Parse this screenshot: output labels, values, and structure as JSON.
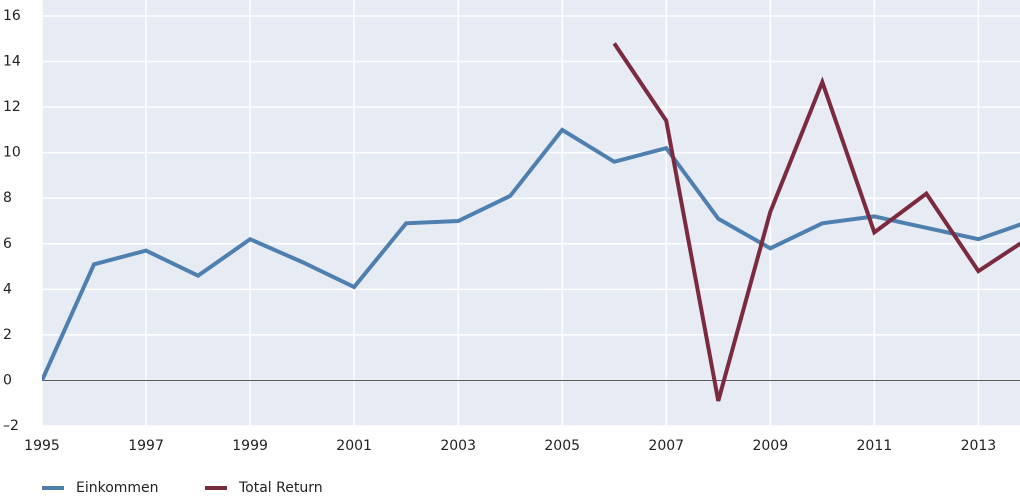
{
  "chart_data": {
    "type": "line",
    "x": [
      1995,
      1996,
      1997,
      1998,
      1999,
      2000,
      2001,
      2002,
      2003,
      2004,
      2005,
      2006,
      2007,
      2008,
      2009,
      2010,
      2011,
      2012,
      2013,
      2014
    ],
    "series": [
      {
        "name": "Einkommen",
        "color": "#4f7fae",
        "values": [
          0,
          5.1,
          5.7,
          4.6,
          6.2,
          5.2,
          4.1,
          6.9,
          7.0,
          8.1,
          11.0,
          9.6,
          10.2,
          7.1,
          5.8,
          6.9,
          7.2,
          6.7,
          6.2,
          7.0
        ]
      },
      {
        "name": "Total Return",
        "color": "#7b2a3f",
        "values": [
          null,
          null,
          null,
          null,
          null,
          null,
          null,
          null,
          null,
          null,
          null,
          14.8,
          11.4,
          -0.9,
          7.4,
          13.1,
          6.5,
          8.2,
          4.8,
          6.3
        ]
      }
    ],
    "xlim": [
      1995,
      2013.8
    ],
    "xticks": [
      1995,
      1997,
      1999,
      2001,
      2003,
      2005,
      2007,
      2009,
      2011,
      2013
    ],
    "ylim": [
      -2,
      16
    ],
    "yticks": [
      {
        "value": -2,
        "label": "–2"
      },
      0,
      2,
      4,
      6,
      8,
      10,
      12,
      14,
      16
    ],
    "grid": true,
    "legend": "bottom"
  }
}
